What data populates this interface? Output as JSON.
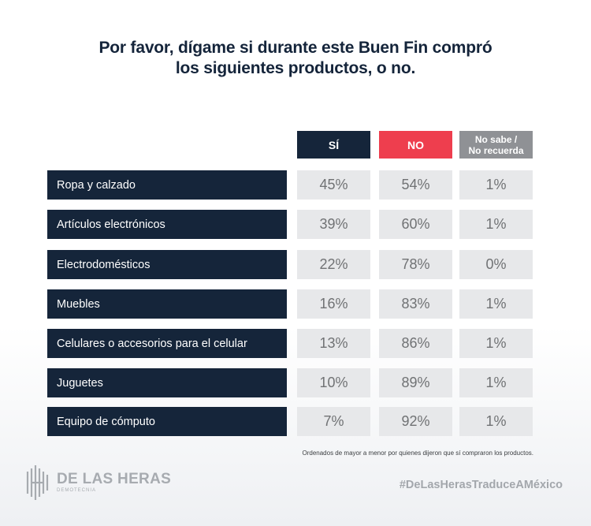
{
  "title": {
    "line1": "Por favor, dígame si durante este Buen Fin compró",
    "line2": "los siguientes productos, o no."
  },
  "columns": {
    "si": "SÍ",
    "no": "NO",
    "ns_line1": "No sabe /",
    "ns_line2": "No recuerda"
  },
  "colors": {
    "si": "#15253a",
    "no": "#ee3e4e",
    "no_sabe": "#8f9195",
    "row_label_bg": "#15253a",
    "cell_bg": "#e7e8ea"
  },
  "chart_data": {
    "type": "table",
    "title": "Por favor, dígame si durante este Buen Fin compró los siguientes productos, o no.",
    "headers": [
      "SÍ",
      "NO",
      "No sabe / No recuerda"
    ],
    "rows": [
      {
        "label": "Ropa y calzado",
        "si": "45%",
        "no": "54%",
        "ns": "1%"
      },
      {
        "label": "Artículos electrónicos",
        "si": "39%",
        "no": "60%",
        "ns": "1%"
      },
      {
        "label": "Electrodomésticos",
        "si": "22%",
        "no": "78%",
        "ns": "0%"
      },
      {
        "label": "Muebles",
        "si": "16%",
        "no": "83%",
        "ns": "1%"
      },
      {
        "label": "Celulares o accesorios para el celular",
        "si": "13%",
        "no": "86%",
        "ns": "1%"
      },
      {
        "label": "Juguetes",
        "si": "10%",
        "no": "89%",
        "ns": "1%"
      },
      {
        "label": "Equipo de cómputo",
        "si": "7%",
        "no": "92%",
        "ns": "1%"
      }
    ]
  },
  "footnote": "Ordenados de mayor a menor por quienes dijeron que sí compraron los productos.",
  "logo": {
    "name": "DE LAS HERAS",
    "sub": "DEMOTECNIA"
  },
  "hashtag": "#DeLasHerasTraduceAMéxico"
}
